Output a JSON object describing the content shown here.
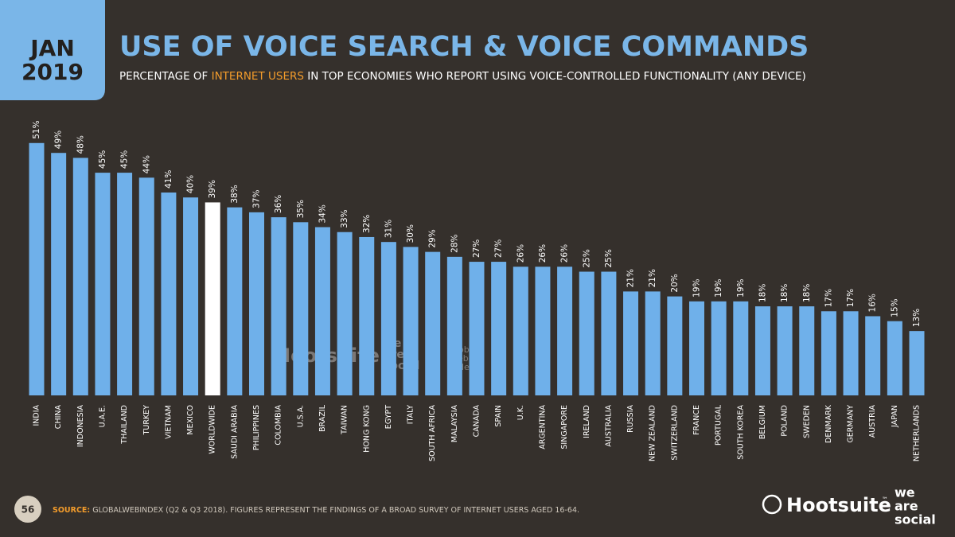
{
  "header": {
    "month": "JAN",
    "year": "2019"
  },
  "chart_data": {
    "type": "bar",
    "title": "USE OF VOICE SEARCH & VOICE COMMANDS",
    "subtitle": {
      "before": "PERCENTAGE OF ",
      "highlight": "INTERNET USERS",
      "after": " IN TOP ECONOMIES WHO REPORT USING VOICE-CONTROLLED FUNCTIONALITY (ANY DEVICE)"
    },
    "categories": [
      "INDIA",
      "CHINA",
      "INDONESIA",
      "U.A.E.",
      "THAILAND",
      "TURKEY",
      "VIETNAM",
      "MEXICO",
      "WORLDWIDE",
      "SAUDI ARABIA",
      "PHILIPPINES",
      "COLOMBIA",
      "U.S.A.",
      "BRAZIL",
      "TAIWAN",
      "HONG KONG",
      "EGYPT",
      "ITALY",
      "SOUTH AFRICA",
      "MALAYSIA",
      "CANADA",
      "SPAIN",
      "U.K.",
      "ARGENTINA",
      "SINGAPORE",
      "IRELAND",
      "AUSTRALIA",
      "RUSSIA",
      "NEW ZEALAND",
      "SWITZERLAND",
      "FRANCE",
      "PORTUGAL",
      "SOUTH KOREA",
      "BELGIUM",
      "POLAND",
      "SWEDEN",
      "DENMARK",
      "GERMANY",
      "AUSTRIA",
      "JAPAN",
      "NETHERLANDS"
    ],
    "values": [
      51,
      49,
      48,
      45,
      45,
      44,
      41,
      40,
      39,
      38,
      37,
      36,
      35,
      34,
      33,
      32,
      31,
      30,
      29,
      28,
      27,
      27,
      26,
      26,
      26,
      25,
      25,
      21,
      21,
      20,
      19,
      19,
      19,
      18,
      18,
      18,
      17,
      17,
      16,
      15,
      13
    ],
    "value_labels": [
      "51%",
      "49%",
      "48%",
      "45%",
      "45%",
      "44%",
      "41%",
      "40%",
      "39%",
      "38%",
      "37%",
      "36%",
      "35%",
      "34%",
      "33%",
      "32%",
      "31%",
      "30%",
      "29%",
      "28%",
      "27%",
      "27%",
      "26%",
      "26%",
      "26%",
      "25%",
      "25%",
      "21%",
      "21%",
      "20%",
      "19%",
      "19%",
      "19%",
      "18%",
      "18%",
      "18%",
      "17%",
      "17%",
      "16%",
      "15%",
      "13%"
    ],
    "color": "#6fb0ea",
    "highlight": {
      "index_color": "#ffffff",
      "category": "WORLDWIDE"
    }
  },
  "footer": {
    "page": "56",
    "source_label": "SOURCE:",
    "source": " GLOBALWEBINDEX (Q2 & Q3 2018). FIGURES REPRESENT THE FINDINGS OF A BROAD SURVEY OF INTERNET USERS AGED 16-64.",
    "logo_hootsuite": "Hootsuite",
    "logo_tm": "™",
    "logo_was": [
      "we",
      "are",
      "social"
    ]
  },
  "watermark": {
    "hootsuite": "Hootsuite",
    "was": [
      "we",
      "are",
      "social"
    ],
    "gwi": [
      "global",
      "web",
      "index"
    ]
  }
}
